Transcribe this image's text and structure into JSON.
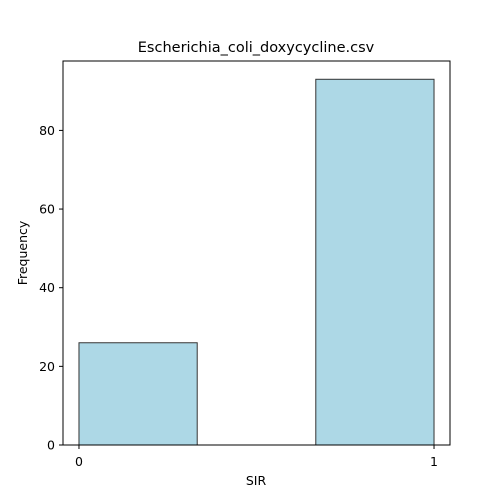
{
  "chart_data": {
    "type": "bar",
    "title": "Escherichia_coli_doxycycline.csv",
    "xlabel": "SIR",
    "ylabel": "Frequency",
    "categories": [
      "0",
      "1"
    ],
    "bins": [
      {
        "x_start": 0,
        "x_end": 0.333,
        "value": 26
      },
      {
        "x_start": 0.667,
        "x_end": 1,
        "value": 93
      }
    ],
    "x_ticks": [
      0,
      1
    ],
    "y_ticks": [
      0,
      20,
      40,
      60,
      80
    ],
    "xlim": [
      -0.045,
      1.045
    ],
    "ylim": [
      0,
      97.65
    ],
    "bar_color": "#add8e6",
    "edge_color": "#333333",
    "grid": false,
    "legend": "none"
  }
}
